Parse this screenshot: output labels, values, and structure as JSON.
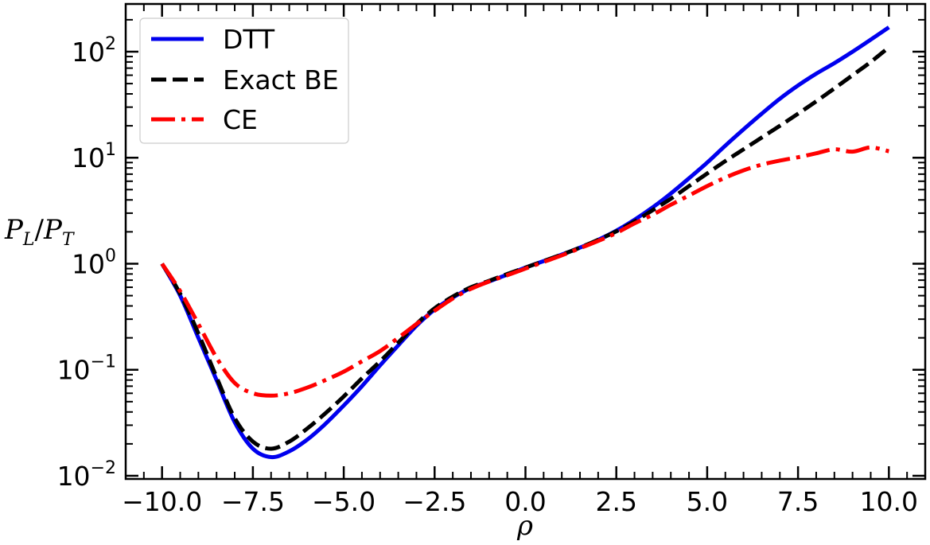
{
  "chart_data": {
    "type": "line",
    "xlabel": "ρ",
    "ylabel_parts": {
      "p1": "P",
      "s1": "L",
      "slash": "/",
      "p2": "P",
      "s2": "T"
    },
    "xlim": [
      -11.0,
      11.0
    ],
    "ylim_log10": [
      -2.03,
      2.45
    ],
    "yscale": "log",
    "x_ticks": [
      -10.0,
      -7.5,
      -5.0,
      -2.5,
      0.0,
      2.5,
      5.0,
      7.5,
      10.0
    ],
    "x_tick_labels": [
      "−10.0",
      "−7.5",
      "−5.0",
      "−2.5",
      "0.0",
      "2.5",
      "5.0",
      "7.5",
      "10.0"
    ],
    "y_ticks": [
      {
        "value": 0.01,
        "base": "10",
        "exp": "−2"
      },
      {
        "value": 0.1,
        "base": "10",
        "exp": "−1"
      },
      {
        "value": 1,
        "base": "10",
        "exp": "0"
      },
      {
        "value": 10,
        "base": "10",
        "exp": "1"
      },
      {
        "value": 100,
        "base": "10",
        "exp": "2"
      }
    ],
    "legend_position": "top-left",
    "series": [
      {
        "name": "DTT",
        "color": "#0000ee",
        "style": "solid",
        "x": [
          -10,
          -9.5,
          -9,
          -8.5,
          -8,
          -7.5,
          -7,
          -6.5,
          -6,
          -5.5,
          -5,
          -4.5,
          -4,
          -3.5,
          -3,
          -2.5,
          -2,
          -1.5,
          -1,
          -0.5,
          0,
          0.5,
          1,
          1.5,
          2,
          2.5,
          3,
          3.5,
          4,
          4.5,
          5,
          5.5,
          6,
          6.5,
          7,
          7.5,
          8,
          8.5,
          9,
          9.5,
          10
        ],
        "y": [
          1.0,
          0.5,
          0.2,
          0.08,
          0.032,
          0.018,
          0.015,
          0.017,
          0.022,
          0.031,
          0.046,
          0.07,
          0.11,
          0.17,
          0.26,
          0.37,
          0.48,
          0.59,
          0.68,
          0.79,
          0.92,
          1.06,
          1.22,
          1.42,
          1.68,
          2.05,
          2.6,
          3.4,
          4.6,
          6.4,
          9.0,
          13.0,
          18.5,
          26.0,
          36.0,
          48.0,
          62.0,
          78.0,
          100.0,
          130.0,
          170.0
        ]
      },
      {
        "name": "Exact BE",
        "color": "#000000",
        "style": "dashed",
        "x": [
          -10,
          -9.5,
          -9,
          -8.5,
          -8,
          -7.5,
          -7,
          -6.5,
          -6,
          -5.5,
          -5,
          -4.5,
          -4,
          -3.5,
          -3,
          -2.5,
          -2,
          -1.5,
          -1,
          -0.5,
          0,
          0.5,
          1,
          1.5,
          2,
          2.5,
          3,
          3.5,
          4,
          4.5,
          5,
          5.5,
          6,
          6.5,
          7,
          7.5,
          8,
          8.5,
          9,
          9.5,
          10
        ],
        "y": [
          1.0,
          0.52,
          0.22,
          0.085,
          0.035,
          0.021,
          0.018,
          0.021,
          0.028,
          0.039,
          0.056,
          0.083,
          0.12,
          0.18,
          0.27,
          0.38,
          0.49,
          0.6,
          0.69,
          0.8,
          0.92,
          1.06,
          1.22,
          1.42,
          1.68,
          2.02,
          2.5,
          3.2,
          4.1,
          5.4,
          7.1,
          9.3,
          12.0,
          15.5,
          20.0,
          26.0,
          34.0,
          45.0,
          60.0,
          80.0,
          110.0
        ]
      },
      {
        "name": "CE",
        "color": "#ff0000",
        "style": "dashdot",
        "x": [
          -10,
          -9.5,
          -9,
          -8.5,
          -8,
          -7.5,
          -7,
          -6.5,
          -6,
          -5.5,
          -5,
          -4.5,
          -4,
          -3.5,
          -3,
          -2.5,
          -2,
          -1.5,
          -1,
          -0.5,
          0,
          0.5,
          1,
          1.5,
          2,
          2.5,
          3,
          3.5,
          4,
          4.5,
          5,
          5.5,
          6,
          6.5,
          7,
          7.5,
          8,
          8.5,
          9,
          9.5,
          10
        ],
        "y": [
          1.0,
          0.55,
          0.27,
          0.13,
          0.075,
          0.06,
          0.057,
          0.06,
          0.068,
          0.08,
          0.096,
          0.12,
          0.15,
          0.2,
          0.27,
          0.36,
          0.47,
          0.58,
          0.68,
          0.78,
          0.9,
          1.04,
          1.2,
          1.4,
          1.64,
          1.95,
          2.4,
          2.9,
          3.6,
          4.4,
          5.4,
          6.5,
          7.6,
          8.6,
          9.4,
          10.1,
          11.0,
          12.0,
          11.4,
          12.5,
          11.5
        ]
      }
    ]
  }
}
